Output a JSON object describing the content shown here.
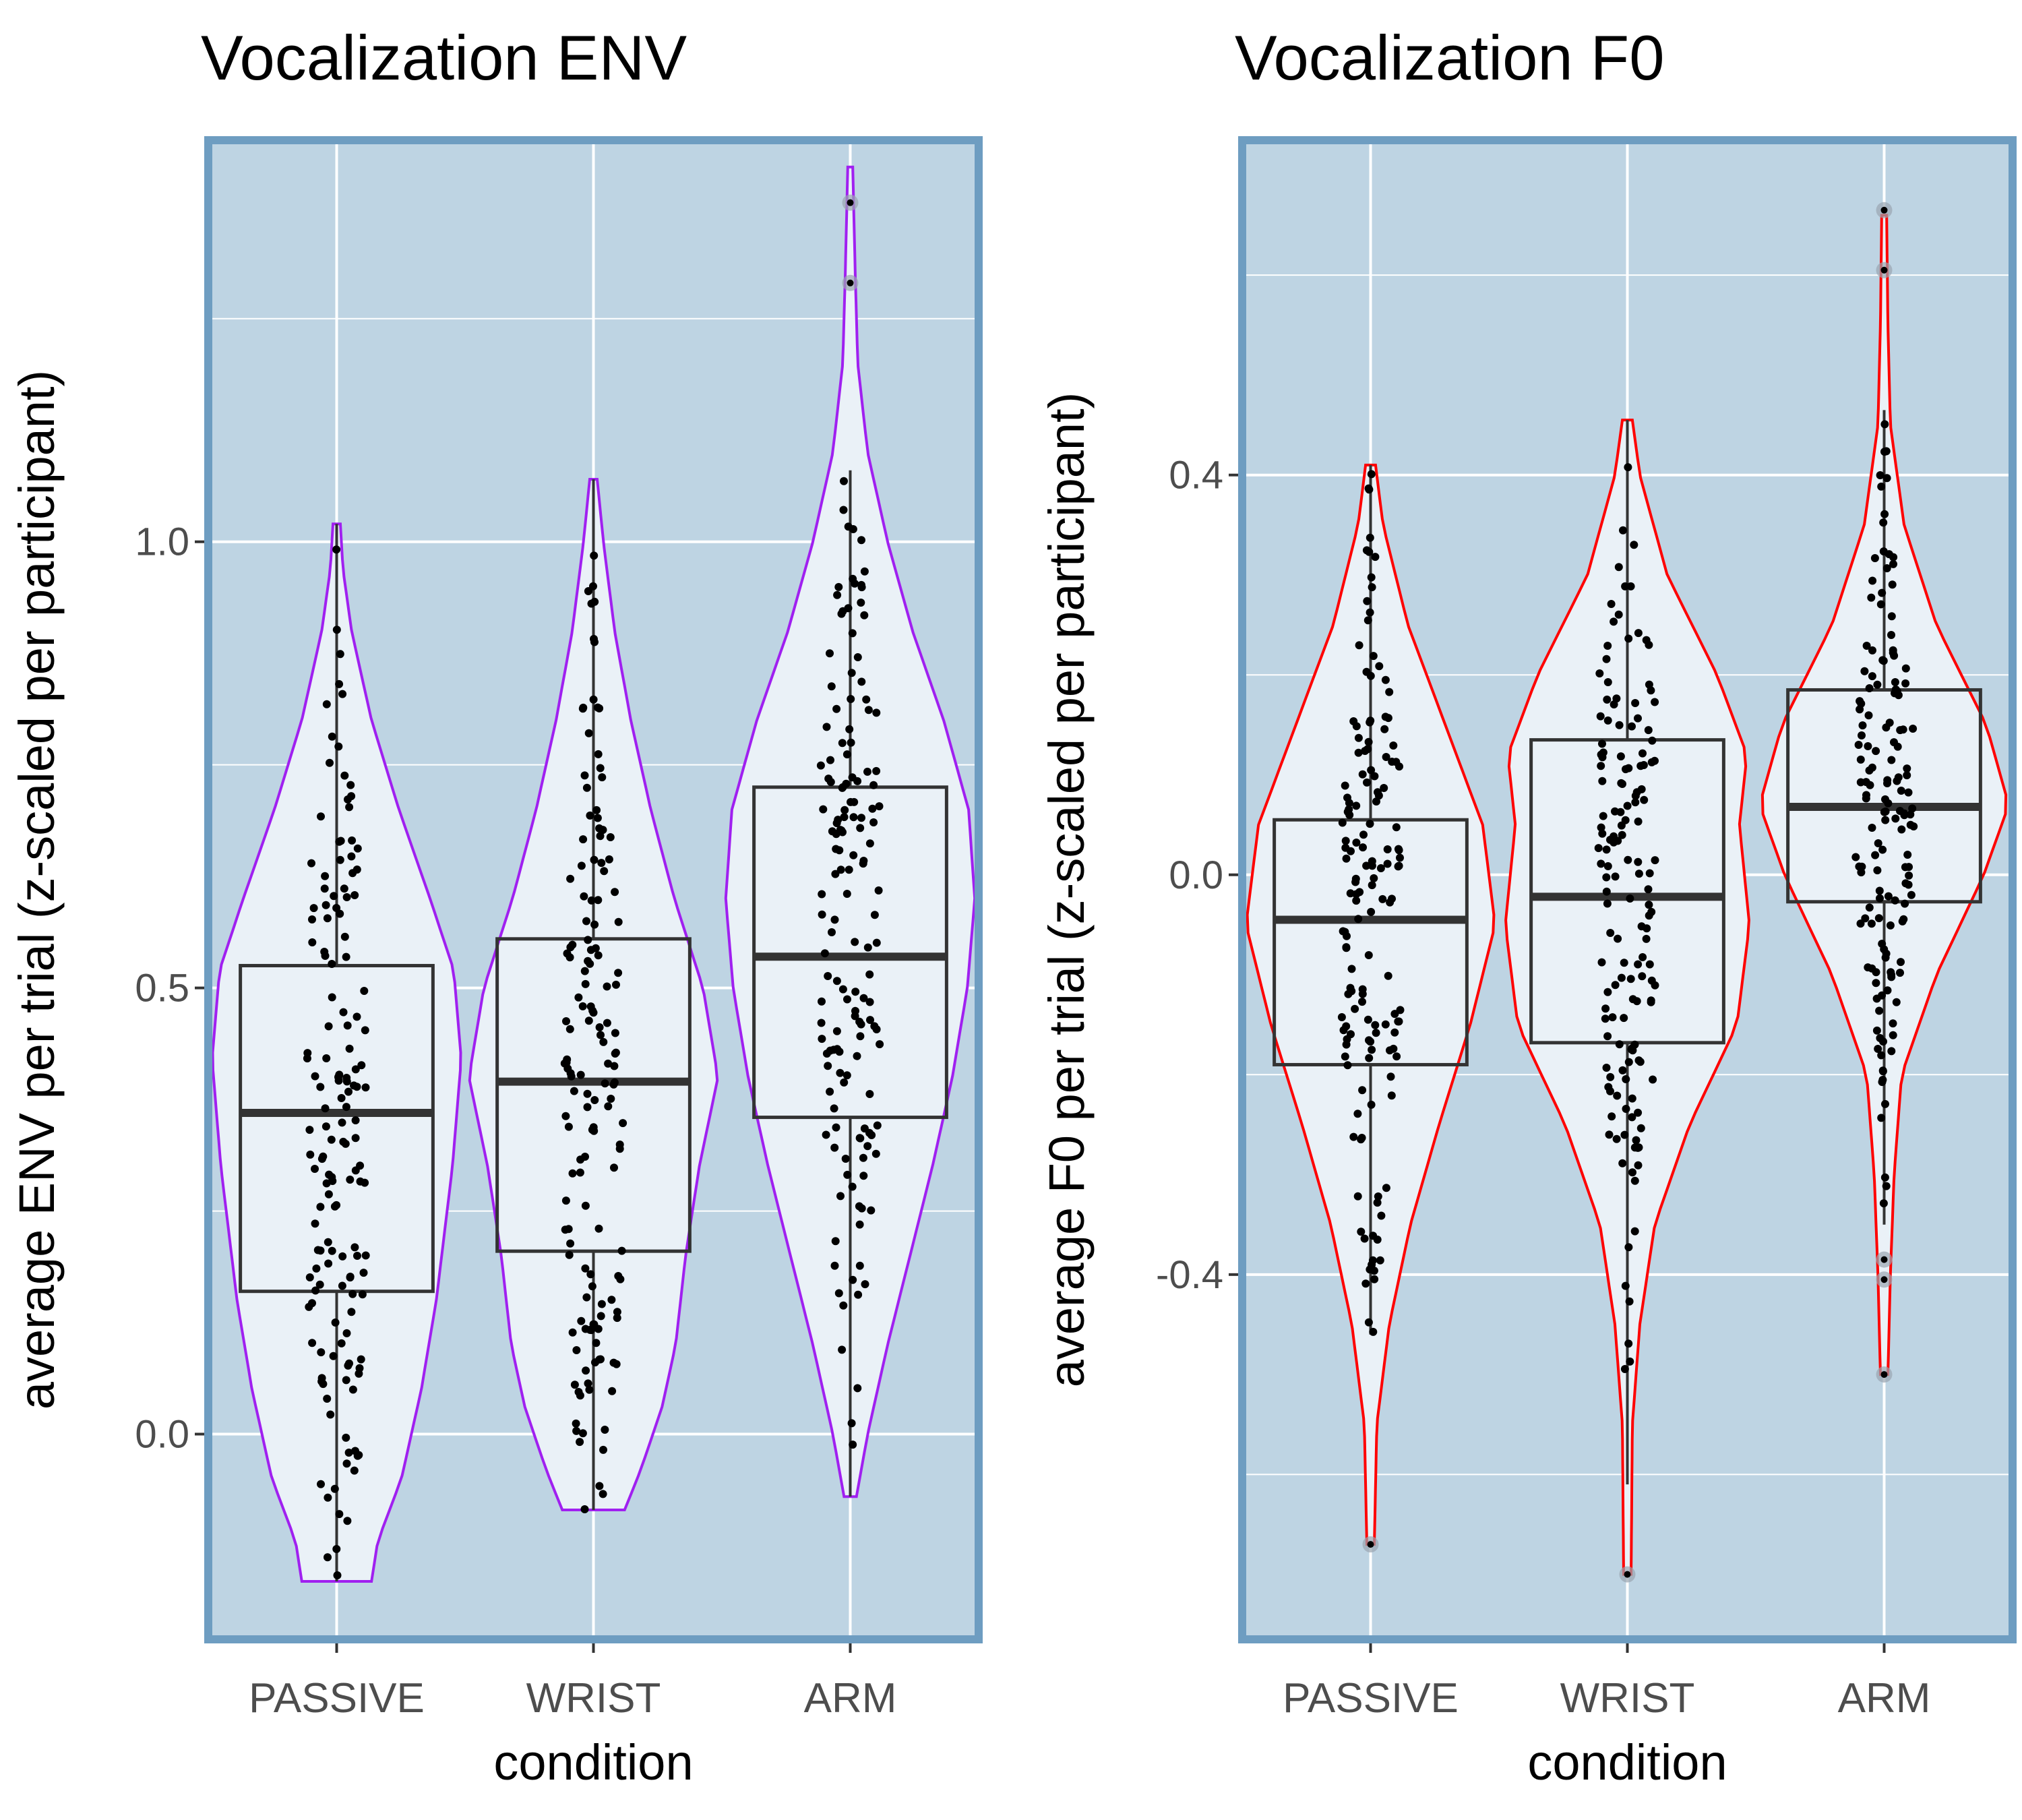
{
  "figure": {
    "colors": {
      "panel_bg": "#bed4e3",
      "panel_border": "#6e9dc1",
      "grid": "#ffffff",
      "violin_fill": "#eaf1f7",
      "box_stroke": "#333333",
      "point": "#000000",
      "outlier_halo": "#9aa5b0"
    }
  },
  "chart_data": [
    {
      "type": "violin",
      "title": "Vocalization ENV",
      "xlabel": "condition",
      "ylabel": "average ENV per trial (z-scaled per participant)",
      "categories": [
        "PASSIVE",
        "WRIST",
        "ARM"
      ],
      "ylim": [
        -0.23,
        1.45
      ],
      "yticks": [
        0.0,
        0.5,
        1.0
      ],
      "ytick_labels": [
        "0.0",
        "0.5",
        "1.0"
      ],
      "minor_yticks": [
        0.25,
        0.75,
        1.25
      ],
      "grid": true,
      "violin_color": "#a020f0",
      "boxes": [
        {
          "category": "PASSIVE",
          "q1": 0.16,
          "median": 0.36,
          "q3": 0.525,
          "whisker_low": -0.165,
          "whisker_high": 1.02
        },
        {
          "category": "WRIST",
          "q1": 0.205,
          "median": 0.395,
          "q3": 0.555,
          "whisker_low": -0.085,
          "whisker_high": 1.07
        },
        {
          "category": "ARM",
          "q1": 0.355,
          "median": 0.535,
          "q3": 0.725,
          "whisker_low": -0.07,
          "whisker_high": 1.08
        }
      ],
      "violins": [
        {
          "category": "PASSIVE",
          "min": -0.165,
          "max": 1.02,
          "profile": [
            [
              -0.165,
              0.28
            ],
            [
              -0.12,
              0.33
            ],
            [
              -0.05,
              0.52
            ],
            [
              0.05,
              0.68
            ],
            [
              0.15,
              0.8
            ],
            [
              0.3,
              0.93
            ],
            [
              0.42,
              1.0
            ],
            [
              0.52,
              0.94
            ],
            [
              0.6,
              0.75
            ],
            [
              0.7,
              0.5
            ],
            [
              0.8,
              0.28
            ],
            [
              0.9,
              0.12
            ],
            [
              0.97,
              0.05
            ],
            [
              1.02,
              0.03
            ]
          ]
        },
        {
          "category": "WRIST",
          "min": -0.085,
          "max": 1.07,
          "profile": [
            [
              -0.085,
              0.25
            ],
            [
              -0.04,
              0.38
            ],
            [
              0.03,
              0.55
            ],
            [
              0.1,
              0.66
            ],
            [
              0.2,
              0.74
            ],
            [
              0.3,
              0.85
            ],
            [
              0.4,
              1.0
            ],
            [
              0.5,
              0.88
            ],
            [
              0.6,
              0.65
            ],
            [
              0.7,
              0.46
            ],
            [
              0.8,
              0.3
            ],
            [
              0.9,
              0.17
            ],
            [
              1.0,
              0.08
            ],
            [
              1.07,
              0.03
            ]
          ]
        },
        {
          "category": "ARM",
          "min": -0.07,
          "max": 1.42,
          "profile": [
            [
              -0.07,
              0.05
            ],
            [
              0.0,
              0.14
            ],
            [
              0.1,
              0.3
            ],
            [
              0.2,
              0.48
            ],
            [
              0.3,
              0.66
            ],
            [
              0.4,
              0.82
            ],
            [
              0.5,
              0.94
            ],
            [
              0.6,
              1.0
            ],
            [
              0.7,
              0.95
            ],
            [
              0.8,
              0.75
            ],
            [
              0.9,
              0.5
            ],
            [
              1.0,
              0.3
            ],
            [
              1.1,
              0.14
            ],
            [
              1.2,
              0.06
            ],
            [
              1.3,
              0.04
            ],
            [
              1.42,
              0.02
            ]
          ]
        }
      ],
      "outliers": [
        {
          "category": "ARM",
          "y": 1.38
        },
        {
          "category": "ARM",
          "y": 1.29
        }
      ]
    },
    {
      "type": "violin",
      "title": "Vocalization F0",
      "xlabel": "condition",
      "ylabel": "average F0 per trial (z-scaled per participant)",
      "categories": [
        "PASSIVE",
        "WRIST",
        "ARM"
      ],
      "ylim": [
        -0.765,
        0.735
      ],
      "yticks": [
        -0.4,
        0.0,
        0.4
      ],
      "ytick_labels": [
        "-0.4",
        "0.0",
        "0.4"
      ],
      "minor_yticks": [
        -0.6,
        -0.2,
        0.2,
        0.6
      ],
      "grid": true,
      "violin_color": "#ff0000",
      "boxes": [
        {
          "category": "PASSIVE",
          "q1": -0.19,
          "median": -0.045,
          "q3": 0.055,
          "whisker_low": -0.46,
          "whisker_high": 0.41
        },
        {
          "category": "WRIST",
          "q1": -0.168,
          "median": -0.022,
          "q3": 0.135,
          "whisker_low": -0.61,
          "whisker_high": 0.455
        },
        {
          "category": "ARM",
          "q1": -0.027,
          "median": 0.068,
          "q3": 0.185,
          "whisker_low": -0.35,
          "whisker_high": 0.465
        }
      ],
      "violins": [
        {
          "category": "PASSIVE",
          "min": -0.67,
          "max": 0.41,
          "profile": [
            [
              -0.67,
              0.03
            ],
            [
              -0.55,
              0.05
            ],
            [
              -0.45,
              0.15
            ],
            [
              -0.35,
              0.32
            ],
            [
              -0.25,
              0.55
            ],
            [
              -0.15,
              0.8
            ],
            [
              -0.05,
              1.0
            ],
            [
              0.05,
              0.9
            ],
            [
              0.15,
              0.6
            ],
            [
              0.25,
              0.3
            ],
            [
              0.35,
              0.1
            ],
            [
              0.41,
              0.04
            ]
          ]
        },
        {
          "category": "WRIST",
          "min": -0.7,
          "max": 0.455,
          "profile": [
            [
              -0.7,
              0.03
            ],
            [
              -0.55,
              0.04
            ],
            [
              -0.45,
              0.1
            ],
            [
              -0.35,
              0.22
            ],
            [
              -0.25,
              0.5
            ],
            [
              -0.15,
              0.88
            ],
            [
              -0.05,
              0.98
            ],
            [
              0.05,
              0.9
            ],
            [
              0.12,
              0.96
            ],
            [
              0.2,
              0.72
            ],
            [
              0.3,
              0.32
            ],
            [
              0.4,
              0.1
            ],
            [
              0.455,
              0.04
            ]
          ]
        },
        {
          "category": "ARM",
          "min": -0.5,
          "max": 0.66,
          "profile": [
            [
              -0.5,
              0.03
            ],
            [
              -0.4,
              0.05
            ],
            [
              -0.3,
              0.08
            ],
            [
              -0.2,
              0.14
            ],
            [
              -0.1,
              0.42
            ],
            [
              0.0,
              0.8
            ],
            [
              0.07,
              1.0
            ],
            [
              0.15,
              0.82
            ],
            [
              0.25,
              0.42
            ],
            [
              0.35,
              0.16
            ],
            [
              0.45,
              0.05
            ],
            [
              0.55,
              0.03
            ],
            [
              0.66,
              0.02
            ]
          ]
        }
      ],
      "outliers": [
        {
          "category": "PASSIVE",
          "y": -0.67
        },
        {
          "category": "WRIST",
          "y": -0.7
        },
        {
          "category": "ARM",
          "y": 0.665
        },
        {
          "category": "ARM",
          "y": 0.605
        },
        {
          "category": "ARM",
          "y": -0.385
        },
        {
          "category": "ARM",
          "y": -0.405
        },
        {
          "category": "ARM",
          "y": -0.5
        }
      ]
    }
  ]
}
